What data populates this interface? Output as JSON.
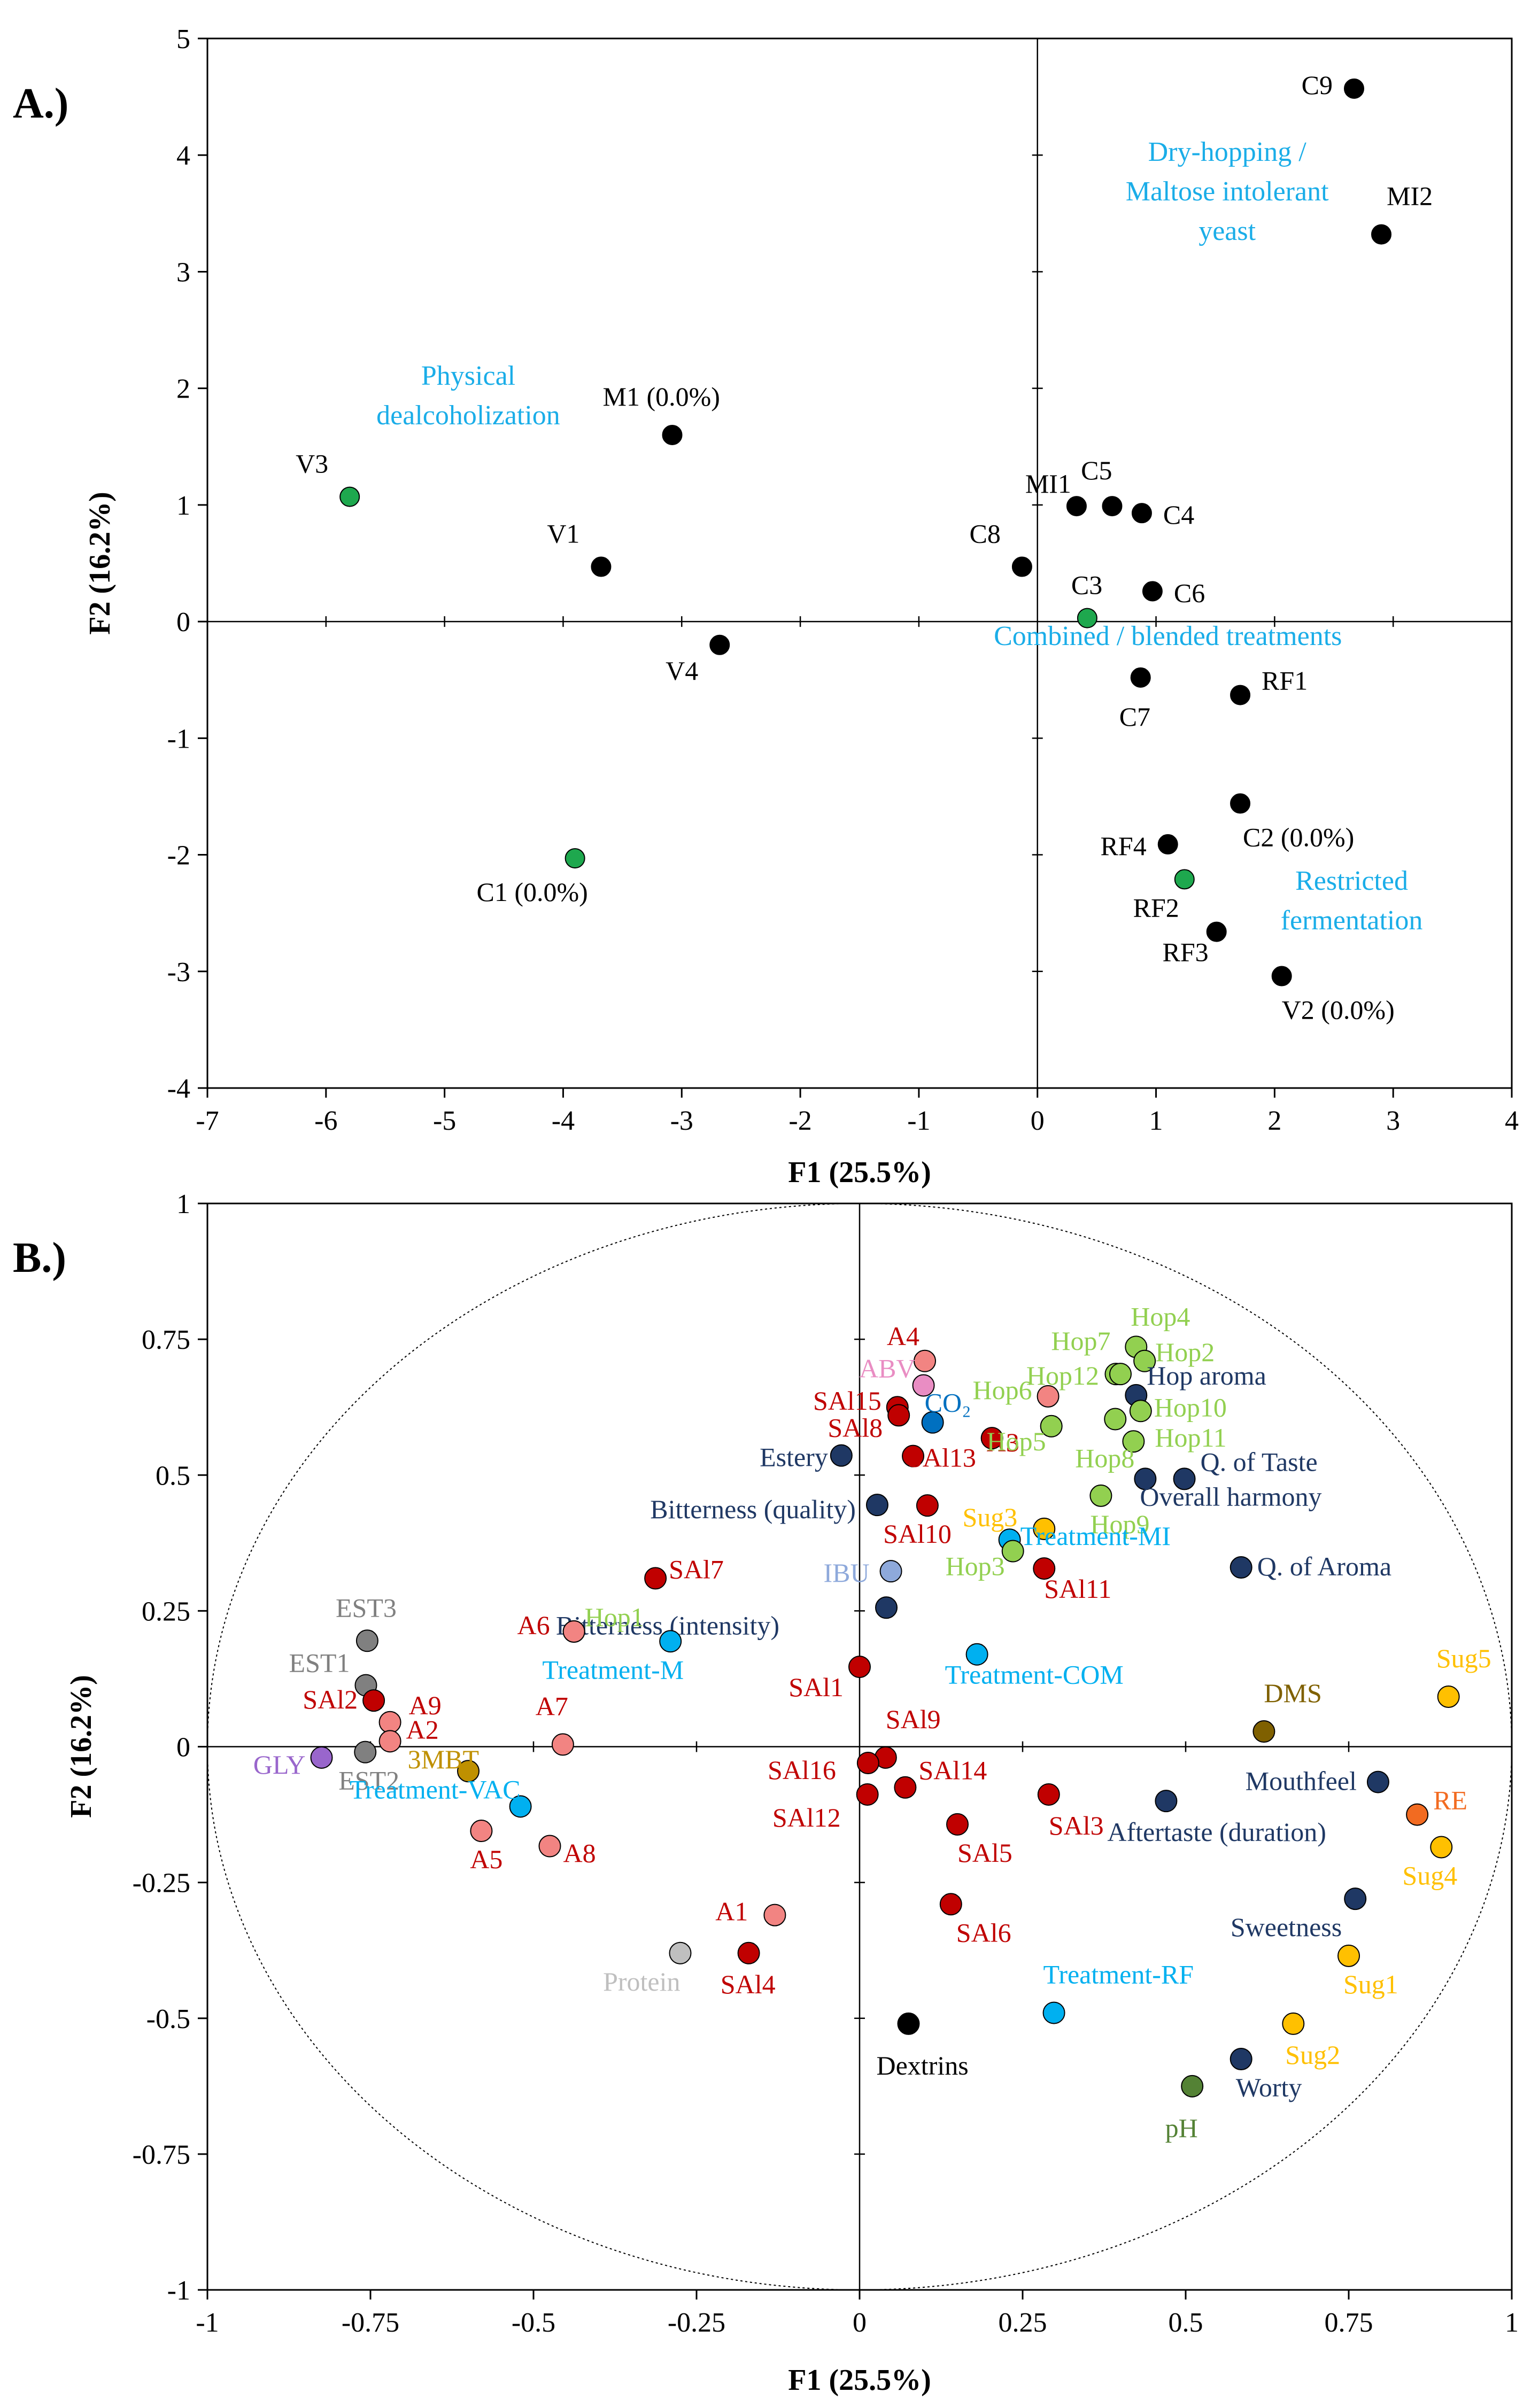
{
  "colors": {
    "black": "#000000",
    "green": "#1EA84E",
    "treatment_label": "#1AADE8",
    "navy": "#1F3864",
    "red": "#C00000",
    "salmon": "#F28482",
    "lightgreen": "#92D050",
    "olive": "#76933C",
    "yellow": "#FFC000",
    "orange": "#F26B21",
    "skyblue": "#00B0F0",
    "teal": "#0070C0",
    "pink": "#E98DC3",
    "lavender": "#8EA9DB",
    "gray": "#808080",
    "lightgray": "#BFBFBF",
    "purple": "#9966CC",
    "brown": "#7F6000",
    "darkgold": "#BF9000",
    "darkgreen": "#548235"
  },
  "chart_data": [
    {
      "id": "A",
      "type": "scatter",
      "panel_label": "A.)",
      "xlabel": "F1 (25.5%)",
      "ylabel": "F2 (16.2%)",
      "xlim": [
        -7,
        4
      ],
      "ylim": [
        -4,
        5
      ],
      "xticks": [
        -7,
        -6,
        -5,
        -4,
        -3,
        -2,
        -1,
        0,
        1,
        2,
        3,
        4
      ],
      "yticks": [
        -4,
        -3,
        -2,
        -1,
        0,
        1,
        2,
        3,
        4,
        5
      ],
      "points": [
        {
          "label": "C9",
          "x": 2.67,
          "y": 4.57,
          "color": "black",
          "anchor": "end",
          "dx": -40,
          "dy": 10
        },
        {
          "label": "MI2",
          "x": 2.9,
          "y": 3.32,
          "color": "black",
          "anchor": "start",
          "dx": 10,
          "dy": -55
        },
        {
          "label": "M1 (0.0%)",
          "x": -3.08,
          "y": 1.6,
          "color": "black",
          "anchor": "start",
          "dx": -130,
          "dy": -55
        },
        {
          "label": "V3",
          "x": -5.8,
          "y": 1.07,
          "color": "green",
          "anchor": "end",
          "dx": -40,
          "dy": -45
        },
        {
          "label": "V1",
          "x": -3.68,
          "y": 0.47,
          "color": "black",
          "anchor": "end",
          "dx": -40,
          "dy": -45
        },
        {
          "label": "MI1",
          "x": 0.33,
          "y": 0.99,
          "color": "black",
          "anchor": "end",
          "dx": -10,
          "dy": -25
        },
        {
          "label": "C5",
          "x": 0.63,
          "y": 0.99,
          "color": "black",
          "anchor": "end",
          "dx": 0,
          "dy": -50
        },
        {
          "label": "C4",
          "x": 0.88,
          "y": 0.93,
          "color": "black",
          "anchor": "start",
          "dx": 40,
          "dy": 20
        },
        {
          "label": "C8",
          "x": -0.13,
          "y": 0.47,
          "color": "black",
          "anchor": "end",
          "dx": -40,
          "dy": -45
        },
        {
          "label": "C3",
          "x": 0.42,
          "y": 0.03,
          "color": "green",
          "anchor": "start",
          "dx": -30,
          "dy": -45
        },
        {
          "label": "C6",
          "x": 0.97,
          "y": 0.26,
          "color": "black",
          "anchor": "start",
          "dx": 40,
          "dy": 20
        },
        {
          "label": "V4",
          "x": -2.68,
          "y": -0.2,
          "color": "black",
          "anchor": "end",
          "dx": -40,
          "dy": 65
        },
        {
          "label": "C7",
          "x": 0.87,
          "y": -0.48,
          "color": "black",
          "anchor": "start",
          "dx": -40,
          "dy": 90
        },
        {
          "label": "RF1",
          "x": 1.71,
          "y": -0.63,
          "color": "black",
          "anchor": "start",
          "dx": 40,
          "dy": -10
        },
        {
          "label": "C2 (0.0%)",
          "x": 1.71,
          "y": -1.56,
          "color": "black",
          "anchor": "start",
          "dx": 5,
          "dy": 80
        },
        {
          "label": "RF4",
          "x": 1.1,
          "y": -1.91,
          "color": "black",
          "anchor": "end",
          "dx": -40,
          "dy": 20
        },
        {
          "label": "C1 (0.0%)",
          "x": -3.9,
          "y": -2.03,
          "color": "green",
          "anchor": "middle",
          "dx": -80,
          "dy": 80
        },
        {
          "label": "RF2",
          "x": 1.24,
          "y": -2.21,
          "color": "green",
          "anchor": "end",
          "dx": -10,
          "dy": 70
        },
        {
          "label": "RF3",
          "x": 1.51,
          "y": -2.66,
          "color": "black",
          "anchor": "end",
          "dx": -15,
          "dy": 55
        },
        {
          "label": "V2 (0.0%)",
          "x": 2.06,
          "y": -3.04,
          "color": "black",
          "anchor": "start",
          "dx": 0,
          "dy": 80
        }
      ],
      "group_labels": [
        {
          "lines": [
            "Dry-hopping /",
            "Maltose intolerant",
            "yeast"
          ],
          "x": 1.6,
          "y": 3.95
        },
        {
          "lines": [
            "Physical",
            "dealcoholization"
          ],
          "x": -4.8,
          "y": 2.03
        },
        {
          "lines": [
            "Combined / blended treatments"
          ],
          "x": 1.1,
          "y": -0.2
        },
        {
          "lines": [
            "Restricted",
            "fermentation"
          ],
          "x": 2.65,
          "y": -2.3
        }
      ]
    },
    {
      "id": "B",
      "type": "scatter",
      "panel_label": "B.)",
      "xlabel": "F1 (25.5%)",
      "ylabel": "F2 (16.2%)",
      "xlim": [
        -1,
        1
      ],
      "ylim": [
        -1,
        1
      ],
      "xticks": [
        -1,
        -0.75,
        -0.5,
        -0.25,
        0,
        0.25,
        0.5,
        0.75,
        1
      ],
      "yticks": [
        -1,
        -0.75,
        -0.5,
        -0.25,
        0,
        0.25,
        0.5,
        0.75,
        1
      ],
      "unit_circle": true,
      "points": [
        {
          "label": "A4",
          "x": 0.1,
          "y": 0.71,
          "color": "salmon",
          "label_color": "red",
          "anchor": "end",
          "dx": -10,
          "dy": -30
        },
        {
          "label": "ABV",
          "x": 0.098,
          "y": 0.665,
          "color": "pink",
          "anchor": "end",
          "dx": -15,
          "dy": -15
        },
        {
          "label": "SAl15",
          "x": 0.058,
          "y": 0.625,
          "color": "red",
          "anchor": "end",
          "dx": -30,
          "dy": 5
        },
        {
          "label": "SAl8",
          "x": 0.06,
          "y": 0.61,
          "color": "red",
          "anchor": "end",
          "dx": -30,
          "dy": 40
        },
        {
          "label": "CO₂",
          "x": 0.112,
          "y": 0.597,
          "color": "teal",
          "anchor": "start",
          "dx": -15,
          "dy": -20
        },
        {
          "label": "Estery",
          "x": -0.028,
          "y": 0.536,
          "color": "navy",
          "anchor": "end",
          "dx": -25,
          "dy": 20
        },
        {
          "label": "SAl13",
          "x": 0.082,
          "y": 0.535,
          "color": "red",
          "anchor": "start",
          "dx": -10,
          "dy": 20
        },
        {
          "label": "A3",
          "x": 0.203,
          "y": 0.568,
          "color": "red",
          "anchor": "start",
          "dx": -10,
          "dy": 25
        },
        {
          "label": "Hop6",
          "x": 0.289,
          "y": 0.645,
          "color": "salmon",
          "label_color": "lightgreen",
          "anchor": "end",
          "dx": -30,
          "dy": 5
        },
        {
          "label": "Hop5",
          "x": 0.294,
          "y": 0.59,
          "color": "lightgreen",
          "anchor": "end",
          "dx": -10,
          "dy": 45
        },
        {
          "label": "Hop7",
          "x": 0.393,
          "y": 0.686,
          "color": "lightgreen",
          "anchor": "end",
          "dx": -10,
          "dy": -45
        },
        {
          "label": "Hop12",
          "x": 0.4,
          "y": 0.686,
          "color": "lightgreen",
          "anchor": "end",
          "dx": -40,
          "dy": 20
        },
        {
          "label": "Hop4",
          "x": 0.424,
          "y": 0.736,
          "color": "lightgreen",
          "anchor": "start",
          "dx": -10,
          "dy": -40
        },
        {
          "label": "Hop2",
          "x": 0.437,
          "y": 0.71,
          "color": "lightgreen",
          "anchor": "start",
          "dx": 20,
          "dy": 0
        },
        {
          "label": "Hop aroma",
          "x": 0.424,
          "y": 0.647,
          "color": "navy",
          "anchor": "start",
          "dx": 20,
          "dy": -20
        },
        {
          "label": "Hop10",
          "x": 0.431,
          "y": 0.618,
          "color": "lightgreen",
          "anchor": "start",
          "dx": 25,
          "dy": 10
        },
        {
          "label": "Hop11",
          "x": 0.42,
          "y": 0.562,
          "color": "lightgreen",
          "anchor": "start",
          "dx": 40,
          "dy": 10
        },
        {
          "label": "Hop8",
          "x": 0.392,
          "y": 0.603,
          "color": "lightgreen",
          "anchor": "start",
          "dx": -75,
          "dy": 90
        },
        {
          "label": "Bitterness (quality)",
          "x": 0.027,
          "y": 0.445,
          "color": "navy",
          "anchor": "end",
          "dx": -40,
          "dy": 25
        },
        {
          "label": "SAl10",
          "x": 0.104,
          "y": 0.444,
          "color": "red",
          "anchor": "end",
          "dx": 45,
          "dy": 70
        },
        {
          "label": "Q. of Taste",
          "x": 0.498,
          "y": 0.493,
          "color": "navy",
          "anchor": "start",
          "dx": 30,
          "dy": -15
        },
        {
          "label": "Overall harmony",
          "x": 0.438,
          "y": 0.493,
          "color": "navy",
          "anchor": "start",
          "dx": -10,
          "dy": 50
        },
        {
          "label": "Hop9",
          "x": 0.37,
          "y": 0.462,
          "color": "lightgreen",
          "anchor": "start",
          "dx": -20,
          "dy": 70
        },
        {
          "label": "Sug3",
          "x": 0.283,
          "y": 0.401,
          "color": "yellow",
          "anchor": "end",
          "dx": -50,
          "dy": -5
        },
        {
          "label": "Treatment-MI",
          "x": 0.23,
          "y": 0.381,
          "color": "skyblue",
          "anchor": "start",
          "dx": 20,
          "dy": 10
        },
        {
          "label": "Hop3",
          "x": 0.235,
          "y": 0.36,
          "color": "lightgreen",
          "anchor": "end",
          "dx": -15,
          "dy": 45
        },
        {
          "label": "SAl11",
          "x": 0.283,
          "y": 0.328,
          "color": "red",
          "anchor": "start",
          "dx": 0,
          "dy": 55
        },
        {
          "label": "Q. of Aroma",
          "x": 0.585,
          "y": 0.33,
          "color": "navy",
          "anchor": "start",
          "dx": 30,
          "dy": 15
        },
        {
          "label": "IBU",
          "x": 0.048,
          "y": 0.323,
          "color": "lavender",
          "anchor": "end",
          "dx": -40,
          "dy": 20
        },
        {
          "label": "SAl7",
          "x": -0.313,
          "y": 0.31,
          "color": "red",
          "anchor": "start",
          "dx": 25,
          "dy": 0
        },
        {
          "label": "Bitterness (intensity)",
          "x": 0.041,
          "y": 0.256,
          "color": "navy",
          "anchor": "end",
          "dx": -200,
          "dy": 50
        },
        {
          "label": "Hop1",
          "x": -0.438,
          "y": 0.212,
          "color": "salmon",
          "label_color": "lightgreen",
          "anchor": "start",
          "dx": 20,
          "dy": -10
        },
        {
          "label": "A6",
          "x": -0.438,
          "y": 0.212,
          "color": "salmon",
          "label_color": "red",
          "anchor": "end",
          "dx": -45,
          "dy": 5
        },
        {
          "label": "Treatment-M",
          "x": -0.29,
          "y": 0.194,
          "color": "skyblue",
          "anchor": "end",
          "dx": 25,
          "dy": 70
        },
        {
          "label": "EST3",
          "x": -0.755,
          "y": 0.195,
          "color": "gray",
          "anchor": "end",
          "dx": 55,
          "dy": -45
        },
        {
          "label": "Treatment-COM",
          "x": 0.18,
          "y": 0.17,
          "color": "skyblue",
          "anchor": "start",
          "dx": -60,
          "dy": 55
        },
        {
          "label": "SAl1",
          "x": 0.0,
          "y": 0.147,
          "color": "red",
          "anchor": "end",
          "dx": -30,
          "dy": 55
        },
        {
          "label": "EST1",
          "x": -0.757,
          "y": 0.113,
          "color": "gray",
          "anchor": "end",
          "dx": -30,
          "dy": -25
        },
        {
          "label": "SAl2",
          "x": -0.745,
          "y": 0.085,
          "color": "red",
          "anchor": "end",
          "dx": -30,
          "dy": 15
        },
        {
          "label": "A9",
          "x": -0.72,
          "y": 0.045,
          "color": "salmon",
          "label_color": "red",
          "anchor": "start",
          "dx": 35,
          "dy": -15
        },
        {
          "label": "Sug5",
          "x": 0.903,
          "y": 0.092,
          "color": "yellow",
          "anchor": "end",
          "dx": 80,
          "dy": -55
        },
        {
          "label": "A7",
          "x": -0.455,
          "y": 0.004,
          "color": "salmon",
          "label_color": "red",
          "anchor": "end",
          "dx": 10,
          "dy": -55
        },
        {
          "label": "A2",
          "x": -0.72,
          "y": 0.01,
          "color": "salmon",
          "label_color": "red",
          "anchor": "start",
          "dx": 30,
          "dy": -5
        },
        {
          "label": "3MBT",
          "x": -0.6,
          "y": -0.045,
          "color": "darkgold",
          "anchor": "end",
          "dx": 20,
          "dy": -5
        },
        {
          "label": "DMS",
          "x": 0.62,
          "y": 0.028,
          "color": "brown",
          "anchor": "start",
          "dx": 0,
          "dy": -55
        },
        {
          "label": "EST2",
          "x": -0.758,
          "y": -0.01,
          "color": "gray",
          "anchor": "start",
          "dx": -50,
          "dy": 70
        },
        {
          "label": "GLY",
          "x": -0.825,
          "y": -0.02,
          "color": "purple",
          "anchor": "end",
          "dx": -30,
          "dy": 30
        },
        {
          "label": "SAl9",
          "x": 0.04,
          "y": -0.02,
          "color": "red",
          "anchor": "start",
          "dx": 0,
          "dy": -55
        },
        {
          "label": "SAl16",
          "x": 0.013,
          "y": -0.03,
          "color": "red",
          "anchor": "end",
          "dx": -60,
          "dy": 30
        },
        {
          "label": "SAl14",
          "x": 0.07,
          "y": -0.075,
          "color": "red",
          "anchor": "start",
          "dx": 25,
          "dy": -15
        },
        {
          "label": "SAl12",
          "x": 0.012,
          "y": -0.088,
          "color": "red",
          "anchor": "end",
          "dx": -50,
          "dy": 60
        },
        {
          "label": "Mouthfeel",
          "x": 0.795,
          "y": -0.065,
          "color": "navy",
          "anchor": "end",
          "dx": -40,
          "dy": 15
        },
        {
          "label": "Treatment-VAC",
          "x": -0.52,
          "y": -0.11,
          "color": "skyblue",
          "anchor": "end",
          "dx": 0,
          "dy": -15
        },
        {
          "label": "SAl3",
          "x": 0.29,
          "y": -0.088,
          "color": "red",
          "anchor": "start",
          "dx": 0,
          "dy": 75
        },
        {
          "label": "Aftertaste (duration)",
          "x": 0.47,
          "y": -0.1,
          "color": "navy",
          "anchor": "start",
          "dx": -110,
          "dy": 75
        },
        {
          "label": "RE",
          "x": 0.855,
          "y": -0.125,
          "color": "orange",
          "anchor": "start",
          "dx": 30,
          "dy": -10
        },
        {
          "label": "SAl5",
          "x": 0.15,
          "y": -0.143,
          "color": "red",
          "anchor": "start",
          "dx": 0,
          "dy": 70
        },
        {
          "label": "A5",
          "x": -0.58,
          "y": -0.155,
          "color": "salmon",
          "label_color": "red",
          "anchor": "end",
          "dx": 40,
          "dy": 70
        },
        {
          "label": "A8",
          "x": -0.475,
          "y": -0.183,
          "color": "salmon",
          "label_color": "red",
          "anchor": "start",
          "dx": 25,
          "dy": 30
        },
        {
          "label": "Sug4",
          "x": 0.892,
          "y": -0.185,
          "color": "yellow",
          "anchor": "end",
          "dx": 30,
          "dy": 70
        },
        {
          "label": "Sweetness",
          "x": 0.76,
          "y": -0.28,
          "color": "navy",
          "anchor": "end",
          "dx": -25,
          "dy": 70
        },
        {
          "label": "SAl6",
          "x": 0.14,
          "y": -0.29,
          "color": "red",
          "anchor": "start",
          "dx": 10,
          "dy": 70
        },
        {
          "label": "A1",
          "x": -0.13,
          "y": -0.31,
          "color": "salmon",
          "label_color": "red",
          "anchor": "end",
          "dx": -50,
          "dy": 10
        },
        {
          "label": "Protein",
          "x": -0.275,
          "y": -0.38,
          "color": "lightgray",
          "anchor": "end",
          "dx": 0,
          "dy": 70
        },
        {
          "label": "SAl4",
          "x": -0.17,
          "y": -0.38,
          "color": "red",
          "anchor": "end",
          "dx": 50,
          "dy": 75
        },
        {
          "label": "Sug1",
          "x": 0.75,
          "y": -0.385,
          "color": "yellow",
          "anchor": "start",
          "dx": -10,
          "dy": 70
        },
        {
          "label": "Treatment-RF",
          "x": 0.298,
          "y": -0.49,
          "color": "skyblue",
          "anchor": "start",
          "dx": -20,
          "dy": -55
        },
        {
          "label": "Dextrins",
          "x": 0.075,
          "y": -0.51,
          "color": "black",
          "anchor": "start",
          "dx": -60,
          "dy": 95
        },
        {
          "label": "Sug2",
          "x": 0.665,
          "y": -0.51,
          "color": "yellow",
          "anchor": "start",
          "dx": -15,
          "dy": 75
        },
        {
          "label": "Worty",
          "x": 0.585,
          "y": -0.575,
          "color": "navy",
          "anchor": "start",
          "dx": -10,
          "dy": 70
        },
        {
          "label": "pH",
          "x": 0.51,
          "y": -0.625,
          "color": "darkgreen",
          "anchor": "middle",
          "dx": -20,
          "dy": 95
        }
      ]
    }
  ]
}
